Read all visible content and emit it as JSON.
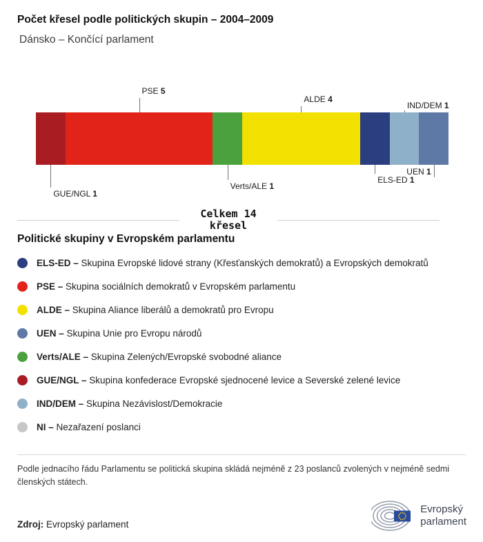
{
  "header": {
    "title": "Počet křesel podle politických skupin – 2004–2009",
    "subtitle": "Dánsko – Končící parlament"
  },
  "chart_data": {
    "type": "bar",
    "variant": "horizontal-stacked-seats",
    "title": "Počet křesel podle politických skupin – 2004–2009",
    "subtitle": "Dánsko – Končící parlament",
    "total": {
      "value": 14,
      "label_line1": "Celkem 14",
      "label_line2": "křesel"
    },
    "segments": [
      {
        "group": "GUE/NGL",
        "seats": 1,
        "color": "#a81c22",
        "label": {
          "side": "below",
          "line_len": 33,
          "text_gap": 35,
          "align": "left"
        }
      },
      {
        "group": "PSE",
        "seats": 5,
        "color": "#e2231a",
        "label": {
          "side": "above",
          "line_len": 21,
          "text_gap": 23,
          "align": "left"
        }
      },
      {
        "group": "Verts/ALE",
        "seats": 1,
        "color": "#4ba13e",
        "label": {
          "side": "below",
          "line_len": 22,
          "text_gap": 24,
          "align": "left"
        }
      },
      {
        "group": "ALDE",
        "seats": 4,
        "color": "#f2e100",
        "label": {
          "side": "above",
          "line_len": 9,
          "text_gap": 11,
          "align": "left"
        }
      },
      {
        "group": "ELS-ED",
        "seats": 1,
        "color": "#2b3e80",
        "label": {
          "side": "below",
          "line_len": 13,
          "text_gap": 15,
          "align": "left"
        }
      },
      {
        "group": "IND/DEM",
        "seats": 1,
        "color": "#8fb0c9",
        "label": {
          "side": "above",
          "line_len": 3,
          "text_gap": 2,
          "align": "left"
        }
      },
      {
        "group": "UEN",
        "seats": 1,
        "color": "#5e79a6",
        "label": {
          "side": "below",
          "line_len": 18,
          "text_gap": 3,
          "align": "right"
        }
      }
    ]
  },
  "legend": {
    "heading": "Politické skupiny v Evropském parlamentu",
    "items": [
      {
        "abbr": "ELS-ED",
        "desc": "Skupina Evropské lidové strany (Křesťanských demokratů) a Evropských demokratů",
        "color": "#2b3e80"
      },
      {
        "abbr": "PSE",
        "desc": "Skupina sociálních demokratů v Evropském parlamentu",
        "color": "#e2231a"
      },
      {
        "abbr": "ALDE",
        "desc": "Skupina Aliance liberálů a demokratů pro Evropu",
        "color": "#f2e100"
      },
      {
        "abbr": "UEN",
        "desc": "Skupina Unie pro Evropu národů",
        "color": "#5e79a6"
      },
      {
        "abbr": "Verts/ALE",
        "desc": "Skupina Zelených/Evropské svobodné aliance",
        "color": "#4ba13e"
      },
      {
        "abbr": "GUE/NGL",
        "desc": "Skupina konfederace Evropské sjednocené levice a Severské zelené levice",
        "color": "#a81c22"
      },
      {
        "abbr": "IND/DEM",
        "desc": "Skupina Nezávislost/Demokracie",
        "color": "#8fb0c9"
      },
      {
        "abbr": "NI",
        "desc": "Nezařazení poslanci",
        "color": "#c7c7c7"
      }
    ]
  },
  "footnote": "Podle jednacího řádu Parlamentu se politická skupina skládá nejméně z 23 poslanců zvolených v nejméně sedmi členských státech.",
  "source": {
    "label": "Zdroj:",
    "value": "Evropský parlament"
  },
  "logo": {
    "line1": "Evropský",
    "line2": "parlament"
  },
  "colors": {
    "leader_line": "#6f6f6f",
    "divider": "#cfcfcf",
    "flag_blue": "#2b4a9b",
    "star_yellow": "#f7d117",
    "arc_gray": "#959caa"
  }
}
